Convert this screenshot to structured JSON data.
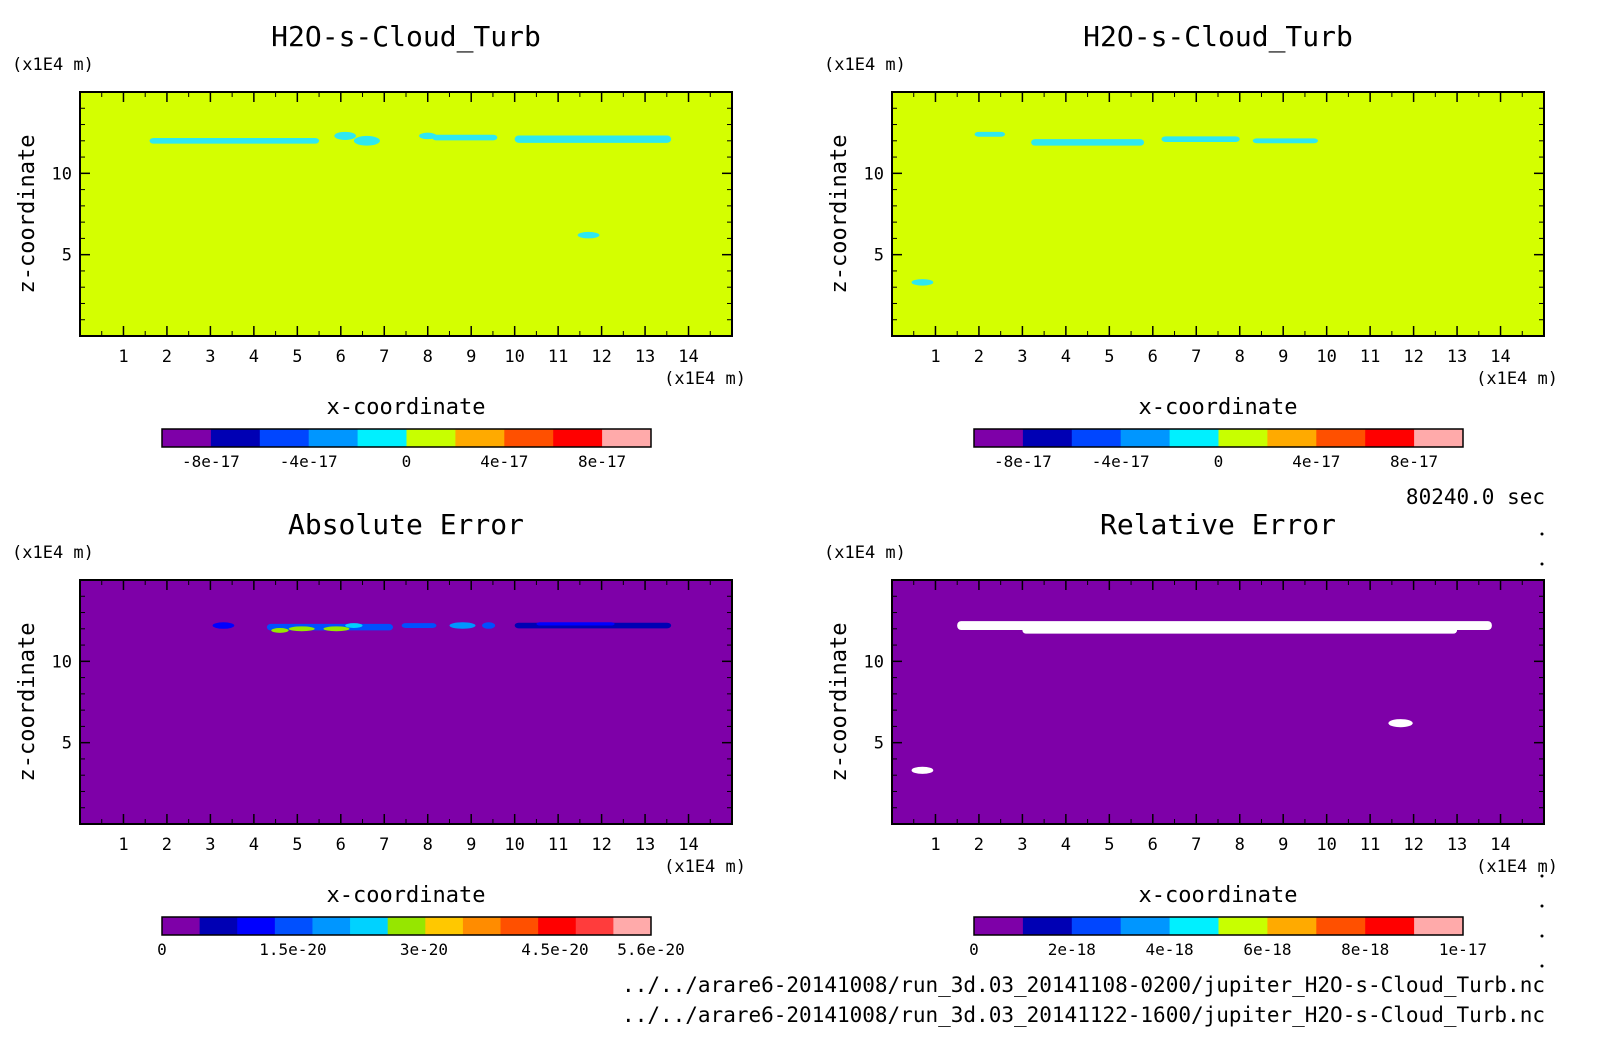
{
  "time_label": "80240.0 sec",
  "files": [
    "../../arare6-20141008/run_3d.03_20141108-0200/jupiter_H2O-s-Cloud_Turb.nc",
    "../../arare6-20141008/run_3d.03_20141122-1600/jupiter_H2O-s-Cloud_Turb.nc"
  ],
  "colors": {
    "background_field": "#d4ff00",
    "purple": "#7e00a8",
    "cyan": "#2ee8f0",
    "white": "#ffffff"
  },
  "chart_data": [
    {
      "type": "heatmap",
      "title": "H2O-s-Cloud_Turb",
      "xlabel": "x-coordinate",
      "ylabel": "z-coordinate",
      "x_unit": "(x1E4 m)",
      "y_unit": "(x1E4 m)",
      "xlim": [
        0,
        15
      ],
      "ylim": [
        0,
        15
      ],
      "xticks": [
        1,
        2,
        3,
        4,
        5,
        6,
        7,
        8,
        9,
        10,
        11,
        12,
        13,
        14
      ],
      "yticks": [
        5,
        10
      ],
      "background": "#d4ff00",
      "colorbar": {
        "vmin": -1e-16,
        "vmax": 1e-16,
        "colors": [
          "#7e00a8",
          "#0000b4",
          "#0046ff",
          "#0096ff",
          "#00f0ff",
          "#c8ff00",
          "#ffaa00",
          "#ff5000",
          "#ff0000",
          "#ffaaaa"
        ],
        "tick_values": [
          -8e-17,
          -4e-17,
          0,
          4e-17,
          8e-17
        ],
        "tick_labels": [
          "-8e-17",
          "-4e-17",
          "0",
          "4e-17",
          "8e-17"
        ]
      },
      "features": [
        {
          "shape": "band",
          "x0": 1.6,
          "x1": 5.5,
          "z": 12.0,
          "dz": 0.35,
          "color": "#2ee8f0"
        },
        {
          "shape": "blob",
          "x": 6.1,
          "z": 12.3,
          "rx": 0.25,
          "rz": 0.25,
          "color": "#2ee8f0"
        },
        {
          "shape": "blob",
          "x": 6.6,
          "z": 12.0,
          "rx": 0.3,
          "rz": 0.3,
          "color": "#2ee8f0"
        },
        {
          "shape": "blob",
          "x": 8.0,
          "z": 12.3,
          "rx": 0.2,
          "rz": 0.2,
          "color": "#2ee8f0"
        },
        {
          "shape": "band",
          "x0": 8.1,
          "x1": 9.6,
          "z": 12.2,
          "dz": 0.35,
          "color": "#2ee8f0"
        },
        {
          "shape": "band",
          "x0": 10.0,
          "x1": 13.6,
          "z": 12.1,
          "dz": 0.45,
          "color": "#2ee8f0"
        },
        {
          "shape": "blob",
          "x": 11.7,
          "z": 6.2,
          "rx": 0.25,
          "rz": 0.2,
          "color": "#2ee8f0"
        }
      ]
    },
    {
      "type": "heatmap",
      "title": "H2O-s-Cloud_Turb",
      "xlabel": "x-coordinate",
      "ylabel": "z-coordinate",
      "x_unit": "(x1E4 m)",
      "y_unit": "(x1E4 m)",
      "xlim": [
        0,
        15
      ],
      "ylim": [
        0,
        15
      ],
      "xticks": [
        1,
        2,
        3,
        4,
        5,
        6,
        7,
        8,
        9,
        10,
        11,
        12,
        13,
        14
      ],
      "yticks": [
        5,
        10
      ],
      "background": "#d4ff00",
      "colorbar": {
        "vmin": -1e-16,
        "vmax": 1e-16,
        "colors": [
          "#7e00a8",
          "#0000b4",
          "#0046ff",
          "#0096ff",
          "#00f0ff",
          "#c8ff00",
          "#ffaa00",
          "#ff5000",
          "#ff0000",
          "#ffaaaa"
        ],
        "tick_values": [
          -8e-17,
          -4e-17,
          0,
          4e-17,
          8e-17
        ],
        "tick_labels": [
          "-8e-17",
          "-4e-17",
          "0",
          "4e-17",
          "8e-17"
        ]
      },
      "features": [
        {
          "shape": "band",
          "x0": 1.9,
          "x1": 2.6,
          "z": 12.4,
          "dz": 0.3,
          "color": "#2ee8f0"
        },
        {
          "shape": "band",
          "x0": 3.2,
          "x1": 5.8,
          "z": 11.9,
          "dz": 0.4,
          "color": "#2ee8f0"
        },
        {
          "shape": "band",
          "x0": 6.2,
          "x1": 8.0,
          "z": 12.1,
          "dz": 0.35,
          "color": "#2ee8f0"
        },
        {
          "shape": "band",
          "x0": 8.3,
          "x1": 9.8,
          "z": 12.0,
          "dz": 0.3,
          "color": "#2ee8f0"
        },
        {
          "shape": "blob",
          "x": 0.7,
          "z": 3.3,
          "rx": 0.25,
          "rz": 0.2,
          "color": "#2ee8f0"
        }
      ]
    },
    {
      "type": "heatmap",
      "title": "Absolute Error",
      "xlabel": "x-coordinate",
      "ylabel": "z-coordinate",
      "x_unit": "(x1E4 m)",
      "y_unit": "(x1E4 m)",
      "xlim": [
        0,
        15
      ],
      "ylim": [
        0,
        15
      ],
      "xticks": [
        1,
        2,
        3,
        4,
        5,
        6,
        7,
        8,
        9,
        10,
        11,
        12,
        13,
        14
      ],
      "yticks": [
        5,
        10
      ],
      "background": "#7e00a8",
      "colorbar": {
        "vmin": 0,
        "vmax": 5.6e-20,
        "colors": [
          "#7e00a8",
          "#0000b4",
          "#0000ff",
          "#0050ff",
          "#0096ff",
          "#00d2ff",
          "#96e600",
          "#ffc800",
          "#ff8c00",
          "#ff5000",
          "#ff0000",
          "#ff3c3c",
          "#ffaaaa"
        ],
        "tick_values": [
          0,
          1.5e-20,
          3e-20,
          4.5e-20,
          5.6e-20
        ],
        "tick_labels": [
          "0",
          "1.5e-20",
          "3e-20",
          "4.5e-20",
          "5.6e-20"
        ]
      },
      "features": [
        {
          "shape": "blob",
          "x": 3.3,
          "z": 12.2,
          "rx": 0.25,
          "rz": 0.2,
          "color": "#0000ff"
        },
        {
          "shape": "band",
          "x0": 4.3,
          "x1": 7.2,
          "z": 12.1,
          "dz": 0.4,
          "color": "#0050ff"
        },
        {
          "shape": "blob",
          "x": 4.6,
          "z": 11.9,
          "rx": 0.2,
          "rz": 0.15,
          "color": "#96e600"
        },
        {
          "shape": "blob",
          "x": 5.1,
          "z": 12.0,
          "rx": 0.3,
          "rz": 0.15,
          "color": "#96e600"
        },
        {
          "shape": "blob",
          "x": 5.9,
          "z": 12.0,
          "rx": 0.3,
          "rz": 0.15,
          "color": "#96e600"
        },
        {
          "shape": "blob",
          "x": 6.3,
          "z": 12.2,
          "rx": 0.2,
          "rz": 0.15,
          "color": "#00d2ff"
        },
        {
          "shape": "band",
          "x0": 7.4,
          "x1": 8.2,
          "z": 12.2,
          "dz": 0.3,
          "color": "#0050ff"
        },
        {
          "shape": "blob",
          "x": 8.8,
          "z": 12.2,
          "rx": 0.3,
          "rz": 0.2,
          "color": "#0096ff"
        },
        {
          "shape": "blob",
          "x": 9.4,
          "z": 12.2,
          "rx": 0.15,
          "rz": 0.2,
          "color": "#0050ff"
        },
        {
          "shape": "band",
          "x0": 10.0,
          "x1": 13.6,
          "z": 12.2,
          "dz": 0.35,
          "color": "#0000b4"
        },
        {
          "shape": "band",
          "x0": 10.5,
          "x1": 12.3,
          "z": 12.3,
          "dz": 0.2,
          "color": "#0000ff"
        }
      ]
    },
    {
      "type": "heatmap",
      "title": "Relative Error",
      "xlabel": "x-coordinate",
      "ylabel": "z-coordinate",
      "x_unit": "(x1E4 m)",
      "y_unit": "(x1E4 m)",
      "xlim": [
        0,
        15
      ],
      "ylim": [
        0,
        15
      ],
      "xticks": [
        1,
        2,
        3,
        4,
        5,
        6,
        7,
        8,
        9,
        10,
        11,
        12,
        13,
        14
      ],
      "yticks": [
        5,
        10
      ],
      "background": "#7e00a8",
      "colorbar": {
        "vmin": 0,
        "vmax": 1e-17,
        "colors": [
          "#7e00a8",
          "#0000b4",
          "#0046ff",
          "#0096ff",
          "#00f0ff",
          "#c8ff00",
          "#ffaa00",
          "#ff5000",
          "#ff0000",
          "#ffaaaa"
        ],
        "tick_values": [
          0,
          2e-18,
          4e-18,
          6e-18,
          8e-18,
          1e-17
        ],
        "tick_labels": [
          "0",
          "2e-18",
          "4e-18",
          "6e-18",
          "8e-18",
          "1e-17"
        ]
      },
      "features": [
        {
          "shape": "band",
          "x0": 1.5,
          "x1": 13.8,
          "z": 12.2,
          "dz": 0.55,
          "color": "#ffffff"
        },
        {
          "shape": "band",
          "x0": 3.0,
          "x1": 13.0,
          "z": 11.9,
          "dz": 0.4,
          "color": "#ffffff"
        },
        {
          "shape": "blob",
          "x": 11.7,
          "z": 6.2,
          "rx": 0.28,
          "rz": 0.25,
          "color": "#ffffff"
        },
        {
          "shape": "blob",
          "x": 0.7,
          "z": 3.3,
          "rx": 0.25,
          "rz": 0.22,
          "color": "#ffffff"
        }
      ]
    }
  ]
}
